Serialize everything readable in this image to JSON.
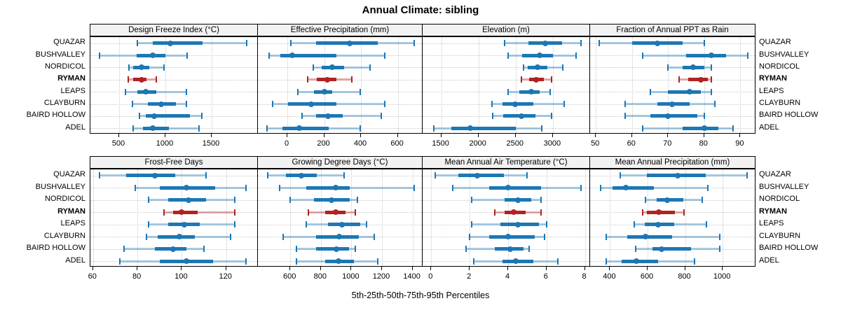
{
  "title": "Annual Climate: sibling",
  "caption": "5th-25th-50th-75th-95th Percentiles",
  "sites": [
    "QUAZAR",
    "BUSHVALLEY",
    "NORDICOL",
    "RYMAN",
    "LEAPS",
    "CLAYBURN",
    "BAIRD HOLLOW",
    "ADEL"
  ],
  "highlight_site": "RYMAN",
  "percentiles": [
    "5th",
    "25th",
    "50th",
    "75th",
    "95th"
  ],
  "colors": {
    "series": "#1d77b4",
    "highlight": "#b22222",
    "band_opacity": 0.38,
    "header_bg": "#f2f2f2",
    "grid": "#c8c8c8",
    "border": "#000000",
    "text": "#000000"
  },
  "chart_data": {
    "type": "percentile-dotplot-grid",
    "grid": "2 rows x 4 cols",
    "orientation": "horizontal",
    "legend_position": "bottom-caption",
    "panels": [
      {
        "title": "Design Freeze Index (°C)",
        "row": 0,
        "col": 0,
        "xlim": [
          190,
          2000
        ],
        "ticks": [
          500,
          1000,
          1500
        ],
        "values": [
          [
            700,
            860,
            1055,
            1400,
            1880
          ],
          [
            290,
            690,
            865,
            1000,
            1235
          ],
          [
            605,
            655,
            740,
            830,
            985
          ],
          [
            595,
            655,
            745,
            795,
            900
          ],
          [
            570,
            695,
            785,
            900,
            1230
          ],
          [
            645,
            810,
            955,
            1115,
            1230
          ],
          [
            720,
            785,
            880,
            1265,
            1395
          ],
          [
            650,
            755,
            865,
            1035,
            1360
          ]
        ]
      },
      {
        "title": "Effective Precipitation (mm)",
        "row": 0,
        "col": 1,
        "xlim": [
          -160,
          735
        ],
        "ticks": [
          0,
          200,
          400,
          600
        ],
        "values": [
          [
            20,
            155,
            340,
            490,
            690
          ],
          [
            -100,
            -40,
            25,
            265,
            530
          ],
          [
            140,
            185,
            245,
            310,
            450
          ],
          [
            110,
            160,
            215,
            265,
            350
          ],
          [
            55,
            145,
            200,
            245,
            395
          ],
          [
            -80,
            5,
            130,
            265,
            530
          ],
          [
            80,
            155,
            220,
            300,
            510
          ],
          [
            -110,
            -25,
            65,
            225,
            395
          ]
        ]
      },
      {
        "title": "Elevation (m)",
        "row": 0,
        "col": 2,
        "xlim": [
          1250,
          3500
        ],
        "ticks": [
          1500,
          2000,
          2500,
          3000
        ],
        "values": [
          [
            2355,
            2670,
            2900,
            3120,
            3375
          ],
          [
            2395,
            2585,
            2820,
            3005,
            3310
          ],
          [
            2605,
            2660,
            2795,
            2930,
            3130
          ],
          [
            2580,
            2680,
            2770,
            2880,
            2985
          ],
          [
            2400,
            2550,
            2705,
            2820,
            2960
          ],
          [
            2180,
            2320,
            2490,
            2740,
            3155
          ],
          [
            2190,
            2335,
            2580,
            2770,
            2985
          ],
          [
            1400,
            1640,
            1885,
            2505,
            2850
          ]
        ]
      },
      {
        "title": "Fraction of Annual PPT as Rain",
        "row": 0,
        "col": 3,
        "xlim": [
          48.4,
          94.2
        ],
        "ticks": [
          50,
          60,
          70,
          80,
          90
        ],
        "values": [
          [
            51,
            60,
            67,
            74,
            80
          ],
          [
            63,
            75,
            82,
            86,
            92
          ],
          [
            70,
            74,
            77,
            80,
            82
          ],
          [
            73,
            75.5,
            79,
            81,
            82
          ],
          [
            65,
            70,
            76,
            79,
            82
          ],
          [
            58,
            67,
            71,
            76,
            83
          ],
          [
            58,
            65,
            70,
            78,
            80
          ],
          [
            63,
            74,
            80,
            84,
            88
          ]
        ]
      },
      {
        "title": "Frost-Free Days",
        "row": 1,
        "col": 0,
        "xlim": [
          58.8,
          134.3
        ],
        "ticks": [
          60,
          80,
          100,
          120
        ],
        "values": [
          [
            63,
            75,
            88,
            97,
            111
          ],
          [
            79,
            90,
            102,
            115,
            129
          ],
          [
            85,
            94,
            103,
            111,
            124
          ],
          [
            92,
            96,
            100,
            107,
            124
          ],
          [
            85,
            94,
            101,
            108,
            124
          ],
          [
            84,
            89,
            99,
            106,
            122
          ],
          [
            74,
            88,
            96,
            102,
            110
          ],
          [
            72,
            90,
            102,
            114,
            129
          ]
        ]
      },
      {
        "title": "Growing Degree Days (°C)",
        "row": 1,
        "col": 1,
        "xlim": [
          388,
          1466
        ],
        "ticks": [
          600,
          800,
          1000,
          1200,
          1400
        ],
        "values": [
          [
            450,
            570,
            670,
            775,
            950
          ],
          [
            530,
            705,
            895,
            990,
            1410
          ],
          [
            600,
            755,
            870,
            990,
            1040
          ],
          [
            720,
            830,
            895,
            960,
            1025
          ],
          [
            705,
            845,
            940,
            1060,
            1100
          ],
          [
            555,
            770,
            920,
            1050,
            1150
          ],
          [
            640,
            770,
            900,
            985,
            1025
          ],
          [
            640,
            830,
            915,
            1015,
            1170
          ]
        ]
      },
      {
        "title": "Mean Annual Air Temperature (°C)",
        "row": 1,
        "col": 2,
        "xlim": [
          -0.45,
          8.27
        ],
        "ticks": [
          0,
          2,
          4,
          6,
          8
        ],
        "values": [
          [
            0.2,
            1.4,
            2.4,
            3.8,
            5.0
          ],
          [
            1.1,
            3.0,
            4.0,
            5.7,
            7.8
          ],
          [
            2.1,
            3.8,
            4.5,
            5.2,
            5.7
          ],
          [
            3.3,
            3.8,
            4.3,
            4.9,
            5.7
          ],
          [
            2.1,
            3.6,
            4.5,
            5.6,
            6.0
          ],
          [
            2.0,
            3.0,
            4.0,
            5.4,
            5.9
          ],
          [
            1.8,
            3.3,
            4.1,
            4.8,
            5.1
          ],
          [
            2.2,
            3.7,
            4.4,
            5.3,
            6.6
          ]
        ]
      },
      {
        "title": "Mean Annual Precipitation (mm)",
        "row": 1,
        "col": 3,
        "xlim": [
          294,
          1175
        ],
        "ticks": [
          400,
          600,
          800,
          1000
        ],
        "values": [
          [
            455,
            595,
            760,
            910,
            1130
          ],
          [
            350,
            415,
            485,
            635,
            920
          ],
          [
            590,
            650,
            705,
            790,
            890
          ],
          [
            575,
            595,
            660,
            745,
            795
          ],
          [
            530,
            585,
            655,
            740,
            915
          ],
          [
            380,
            490,
            590,
            730,
            985
          ],
          [
            535,
            625,
            675,
            830,
            985
          ],
          [
            380,
            460,
            540,
            655,
            850
          ]
        ]
      }
    ]
  }
}
